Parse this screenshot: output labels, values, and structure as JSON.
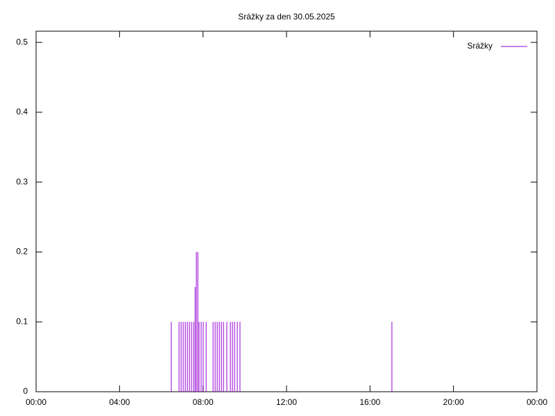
{
  "chart_data": {
    "type": "impulses",
    "title": "Srážky za den 30.05.2025",
    "xlim": [
      0,
      24
    ],
    "xticks": [
      {
        "value": 0,
        "label": "00:00"
      },
      {
        "value": 4,
        "label": "04:00"
      },
      {
        "value": 8,
        "label": "08:00"
      },
      {
        "value": 12,
        "label": "12:00"
      },
      {
        "value": 16,
        "label": "16:00"
      },
      {
        "value": 20,
        "label": "20:00"
      },
      {
        "value": 24,
        "label": "00:00"
      }
    ],
    "ylim": [
      0,
      0.516
    ],
    "yticks": [
      0,
      0.1,
      0.2,
      0.3,
      0.4,
      0.5
    ],
    "legend": "top-right",
    "series": [
      {
        "name": "Srážky",
        "color": "#9400d3",
        "x": [
          6.48,
          6.85,
          6.95,
          7.05,
          7.15,
          7.25,
          7.35,
          7.45,
          7.55,
          7.62,
          7.68,
          7.75,
          7.81,
          7.91,
          8.01,
          8.15,
          8.48,
          8.58,
          8.68,
          8.78,
          8.88,
          8.98,
          9.14,
          9.31,
          9.41,
          9.51,
          9.64,
          9.77,
          17.05
        ],
        "values": [
          0.1,
          0.1,
          0.1,
          0.1,
          0.1,
          0.1,
          0.1,
          0.1,
          0.1,
          0.15,
          0.2,
          0.2,
          0.1,
          0.1,
          0.1,
          0.1,
          0.1,
          0.1,
          0.1,
          0.1,
          0.1,
          0.1,
          0.1,
          0.1,
          0.1,
          0.1,
          0.1,
          0.1,
          0.1
        ]
      }
    ]
  }
}
